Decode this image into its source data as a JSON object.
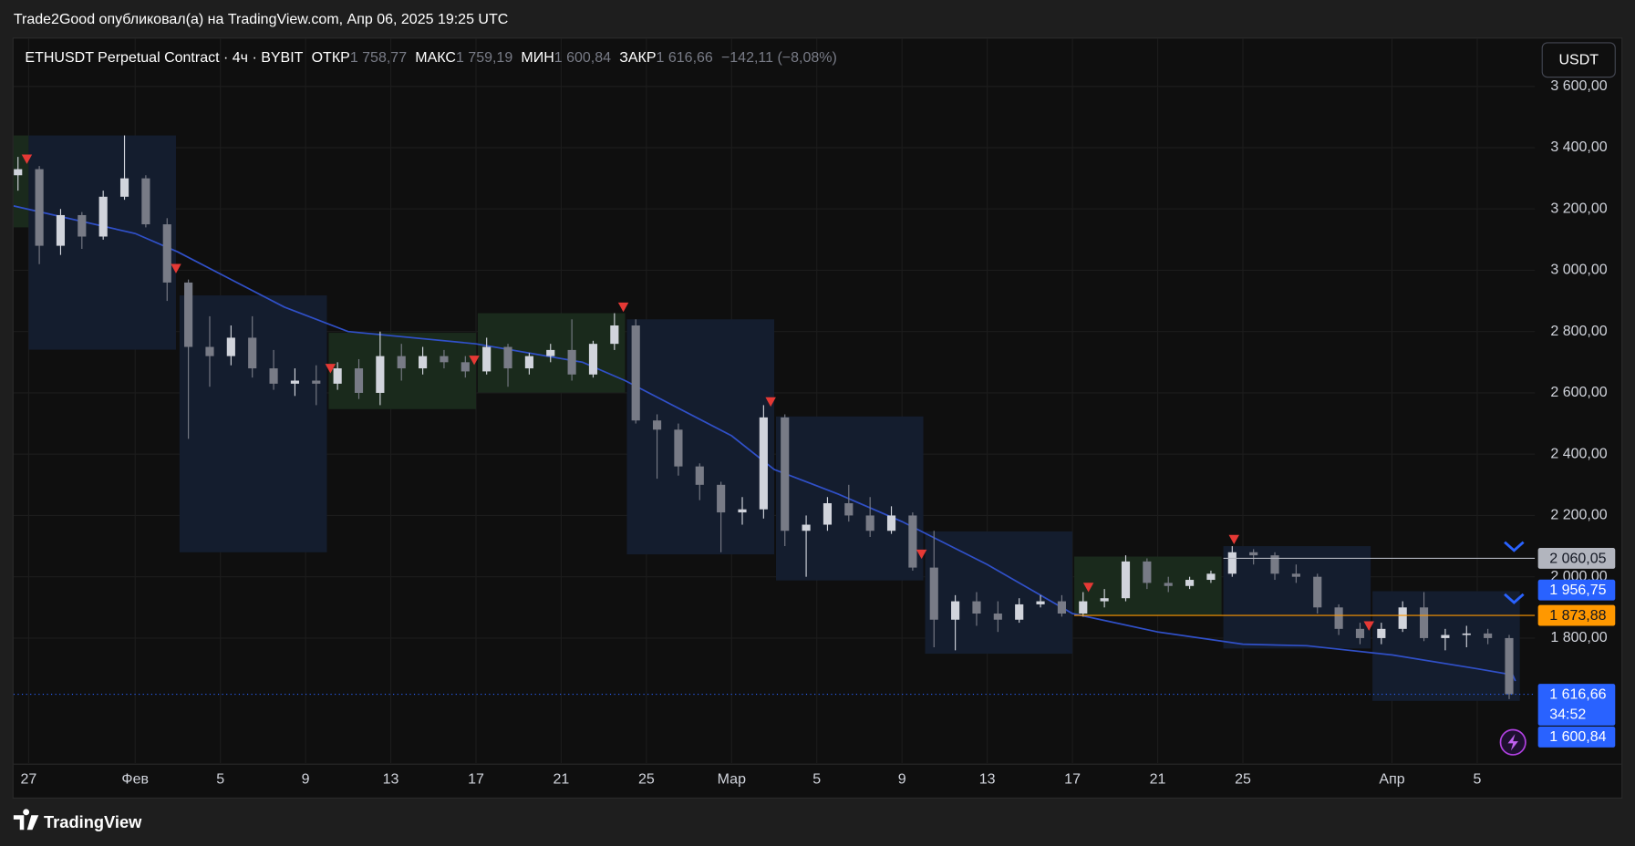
{
  "header": {
    "title": "Trade2Good опубликовал(а) на TradingView.com, Апр 06, 2025 19:25 UTC"
  },
  "toolbar": {
    "currency": "USDT"
  },
  "footer": {
    "brand": "TradingView"
  },
  "chart_data": {
    "type": "candlestick",
    "legend": {
      "symbol": "ETHUSDT Perpetual Contract · 4ч · BYBIT",
      "items": [
        {
          "label": "ОТКР",
          "value": "1 758,77"
        },
        {
          "label": "МАКС",
          "value": "1 759,19"
        },
        {
          "label": "МИН",
          "value": "1 600,84"
        },
        {
          "label": "ЗАКР",
          "value": "1 616,66"
        }
      ],
      "change": "−142,11 (−8,08%)"
    },
    "up_color": "#d1d4dc",
    "down_color": "#787b86",
    "x": [
      "2025-01-26",
      "2025-01-27",
      "2025-01-28",
      "2025-01-29",
      "2025-01-30",
      "2025-01-31",
      "2025-02-01",
      "2025-02-02",
      "2025-02-03",
      "2025-02-04",
      "2025-02-05",
      "2025-02-06",
      "2025-02-07",
      "2025-02-08",
      "2025-02-09",
      "2025-02-10",
      "2025-02-11",
      "2025-02-12",
      "2025-02-13",
      "2025-02-14",
      "2025-02-15",
      "2025-02-16",
      "2025-02-17",
      "2025-02-18",
      "2025-02-19",
      "2025-02-20",
      "2025-02-21",
      "2025-02-22",
      "2025-02-23",
      "2025-02-24",
      "2025-02-25",
      "2025-02-26",
      "2025-02-27",
      "2025-02-28",
      "2025-03-01",
      "2025-03-02",
      "2025-03-03",
      "2025-03-04",
      "2025-03-05",
      "2025-03-06",
      "2025-03-07",
      "2025-03-08",
      "2025-03-09",
      "2025-03-10",
      "2025-03-11",
      "2025-03-12",
      "2025-03-13",
      "2025-03-14",
      "2025-03-15",
      "2025-03-16",
      "2025-03-17",
      "2025-03-18",
      "2025-03-19",
      "2025-03-20",
      "2025-03-21",
      "2025-03-22",
      "2025-03-23",
      "2025-03-24",
      "2025-03-25",
      "2025-03-26",
      "2025-03-27",
      "2025-03-28",
      "2025-03-29",
      "2025-03-30",
      "2025-03-31",
      "2025-04-01",
      "2025-04-02",
      "2025-04-03",
      "2025-04-04",
      "2025-04-05",
      "2025-04-06"
    ],
    "open": [
      3310,
      3330,
      3080,
      3180,
      3110,
      3240,
      3300,
      3150,
      2960,
      2750,
      2720,
      2780,
      2680,
      2630,
      2640,
      2630,
      2680,
      2600,
      2720,
      2680,
      2720,
      2700,
      2670,
      2750,
      2680,
      2720,
      2740,
      2660,
      2760,
      2820,
      2510,
      2480,
      2360,
      2300,
      2210,
      2220,
      2520,
      2150,
      2170,
      2240,
      2200,
      2150,
      2200,
      2030,
      1860,
      1920,
      1880,
      1860,
      1910,
      1920,
      1880,
      1920,
      1930,
      2050,
      1980,
      1970,
      1990,
      2010,
      2080,
      2070,
      2010,
      2000,
      1900,
      1830,
      1800,
      1830,
      1900,
      1800,
      1810,
      1815,
      1800
    ],
    "high": [
      3370,
      3340,
      3200,
      3190,
      3260,
      3440,
      3310,
      3170,
      2970,
      2850,
      2820,
      2850,
      2740,
      2680,
      2690,
      2700,
      2710,
      2800,
      2760,
      2750,
      2740,
      2720,
      2780,
      2760,
      2730,
      2760,
      2840,
      2770,
      2860,
      2840,
      2530,
      2500,
      2370,
      2310,
      2260,
      2560,
      2530,
      2200,
      2260,
      2300,
      2260,
      2230,
      2210,
      2150,
      1940,
      1950,
      1920,
      1930,
      1940,
      1940,
      1950,
      1960,
      2070,
      2060,
      2000,
      2000,
      2020,
      2100,
      2090,
      2080,
      2040,
      2010,
      1910,
      1850,
      1850,
      1920,
      1950,
      1830,
      1840,
      1830,
      1810
    ],
    "low": [
      3260,
      3020,
      3050,
      3070,
      3100,
      3230,
      3140,
      2900,
      2450,
      2620,
      2690,
      2650,
      2610,
      2590,
      2560,
      2610,
      2580,
      2560,
      2640,
      2660,
      2680,
      2650,
      2660,
      2620,
      2660,
      2700,
      2640,
      2650,
      2740,
      2500,
      2320,
      2330,
      2250,
      2080,
      2170,
      2190,
      2100,
      2000,
      2150,
      2180,
      2130,
      2140,
      2020,
      1770,
      1760,
      1840,
      1820,
      1850,
      1900,
      1870,
      1870,
      1900,
      1920,
      1960,
      1950,
      1960,
      1980,
      2000,
      2040,
      1990,
      1980,
      1880,
      1810,
      1780,
      1780,
      1820,
      1790,
      1760,
      1770,
      1780,
      1600.84
    ],
    "close": [
      3330,
      3080,
      3180,
      3110,
      3240,
      3300,
      3150,
      2960,
      2750,
      2720,
      2780,
      2680,
      2630,
      2640,
      2630,
      2680,
      2600,
      2720,
      2680,
      2720,
      2700,
      2670,
      2750,
      2680,
      2720,
      2740,
      2660,
      2760,
      2820,
      2510,
      2480,
      2360,
      2300,
      2210,
      2220,
      2520,
      2150,
      2170,
      2240,
      2200,
      2150,
      2200,
      2030,
      1860,
      1920,
      1880,
      1860,
      1910,
      1920,
      1880,
      1920,
      1930,
      2050,
      1980,
      1970,
      1990,
      2010,
      2080,
      2070,
      2010,
      2000,
      1900,
      1830,
      1800,
      1830,
      1900,
      1800,
      1810,
      1815,
      1800,
      1616.66
    ],
    "ma": {
      "color": "#3050c8",
      "x": [
        "2025-01-26T07:00",
        "2025-02-01T00:00",
        "2025-02-03T00:00",
        "2025-02-08T00:00",
        "2025-02-11T00:00",
        "2025-02-17T00:00",
        "2025-02-22T00:00",
        "2025-02-24T00:00",
        "2025-03-01T00:00",
        "2025-03-03T00:00",
        "2025-03-06T00:00",
        "2025-03-09T00:00",
        "2025-03-13T00:00",
        "2025-03-17T00:00",
        "2025-03-21T00:00",
        "2025-03-25T00:00",
        "2025-03-28T00:00",
        "2025-04-01T00:00",
        "2025-04-05T00:00",
        "2025-04-06T16:00",
        "2025-04-06T19:00"
      ],
      "values": [
        3210,
        3120,
        3060,
        2880,
        2800,
        2760,
        2700,
        2640,
        2460,
        2350,
        2270,
        2180,
        2040,
        1880,
        1820,
        1780,
        1775,
        1745,
        1700,
        1680,
        1660
      ]
    },
    "boxes": [
      {
        "start": "2025-01-26T00:00",
        "end": "2025-01-27T00:00",
        "top": 3440,
        "bottom": 3140,
        "color": "#1a2a1c"
      },
      {
        "start": "2025-01-27T00:00",
        "end": "2025-02-02T22:00",
        "top": 3440,
        "bottom": 2741,
        "color": "#141d2e"
      },
      {
        "start": "2025-02-03T02:00",
        "end": "2025-02-10T00:00",
        "top": 2918,
        "bottom": 2080,
        "color": "#141d2e"
      },
      {
        "start": "2025-02-10T02:00",
        "end": "2025-02-17T00:00",
        "top": 2796,
        "bottom": 2547,
        "color": "#1a2a1c"
      },
      {
        "start": "2025-02-17T02:00",
        "end": "2025-02-24T00:00",
        "top": 2860,
        "bottom": 2601,
        "color": "#1a2a1c"
      },
      {
        "start": "2025-02-24T02:00",
        "end": "2025-03-03T00:00",
        "top": 2840,
        "bottom": 2073,
        "color": "#141d2e"
      },
      {
        "start": "2025-03-03T02:00",
        "end": "2025-03-10T00:00",
        "top": 2523,
        "bottom": 1988,
        "color": "#141d2e"
      },
      {
        "start": "2025-03-10T02:00",
        "end": "2025-03-17T00:00",
        "top": 2148,
        "bottom": 1749,
        "color": "#141d2e"
      },
      {
        "start": "2025-03-17T02:00",
        "end": "2025-03-24T00:00",
        "top": 2066,
        "bottom": 1875,
        "color": "#1a2a1c"
      },
      {
        "start": "2025-03-24T02:00",
        "end": "2025-03-31T00:00",
        "top": 2100,
        "bottom": 1766,
        "color": "#141d2e"
      },
      {
        "start": "2025-03-31T02:00",
        "end": "2025-04-07T00:00",
        "top": 1953,
        "bottom": 1595,
        "color": "#141d2e"
      }
    ],
    "signals": {
      "color": "#e53935",
      "x": [
        "2025-01-26T22:00",
        "2025-02-02T22:00",
        "2025-02-10T04:00",
        "2025-02-16T22:00",
        "2025-02-23T22:00",
        "2025-03-02T20:00",
        "2025-03-09T22:00",
        "2025-03-17T18:00",
        "2025-03-24T14:00",
        "2025-03-30T22:00"
      ],
      "values": [
        3364,
        3007,
        2681,
        2708,
        2881,
        2572,
        2075,
        1967,
        2123,
        1841
      ]
    },
    "price_labels": [
      {
        "value": 2060.05,
        "label": "2 060,05",
        "color": "#b2b5be",
        "text_color": "#131722",
        "line_from": "2025-03-24T02:00"
      },
      {
        "value": 1956.75,
        "label": "1 956,75",
        "color": "#2962ff"
      },
      {
        "value": 1873.88,
        "label": "1 873,88",
        "color": "#ff9800",
        "text_color": "#131722",
        "line_from": "2025-03-17T02:00"
      },
      {
        "value": 1616.66,
        "label": "1 616,66",
        "color": "#2962ff",
        "countdown": "34:52",
        "line_from": "2025-01-26T07:00",
        "dotted": true
      },
      {
        "value": 1600.84,
        "label": "1 600,84",
        "color": "#2962ff"
      }
    ],
    "xlim": [
      "2025-01-26T07:00",
      "2025-04-07T17:00"
    ],
    "xticks": [
      {
        "value": "2025-01-27",
        "label": "27"
      },
      {
        "value": "2025-02-01",
        "label": "Фев"
      },
      {
        "value": "2025-02-05",
        "label": "5"
      },
      {
        "value": "2025-02-09",
        "label": "9"
      },
      {
        "value": "2025-02-13",
        "label": "13"
      },
      {
        "value": "2025-02-17",
        "label": "17"
      },
      {
        "value": "2025-02-21",
        "label": "21"
      },
      {
        "value": "2025-02-25",
        "label": "25"
      },
      {
        "value": "2025-03-01",
        "label": "Мар"
      },
      {
        "value": "2025-03-05",
        "label": "5"
      },
      {
        "value": "2025-03-09",
        "label": "9"
      },
      {
        "value": "2025-03-13",
        "label": "13"
      },
      {
        "value": "2025-03-17",
        "label": "17"
      },
      {
        "value": "2025-03-21",
        "label": "21"
      },
      {
        "value": "2025-03-25",
        "label": "25"
      },
      {
        "value": "2025-04-01",
        "label": "Апр"
      },
      {
        "value": "2025-04-05",
        "label": "5"
      }
    ],
    "ylim": [
      1392,
      3756
    ],
    "yticks": [
      {
        "value": 1800,
        "label": "1 800,00"
      },
      {
        "value": 2000,
        "label": "2 000,00"
      },
      {
        "value": 2200,
        "label": "2 200,00"
      },
      {
        "value": 2400,
        "label": "2 400,00"
      },
      {
        "value": 2600,
        "label": "2 600,00"
      },
      {
        "value": 2800,
        "label": "2 800,00"
      },
      {
        "value": 3000,
        "label": "3 000,00"
      },
      {
        "value": 3200,
        "label": "3 200,00"
      },
      {
        "value": 3400,
        "label": "3 400,00"
      },
      {
        "value": 3600,
        "label": "3 600,00"
      }
    ],
    "grid": true
  }
}
